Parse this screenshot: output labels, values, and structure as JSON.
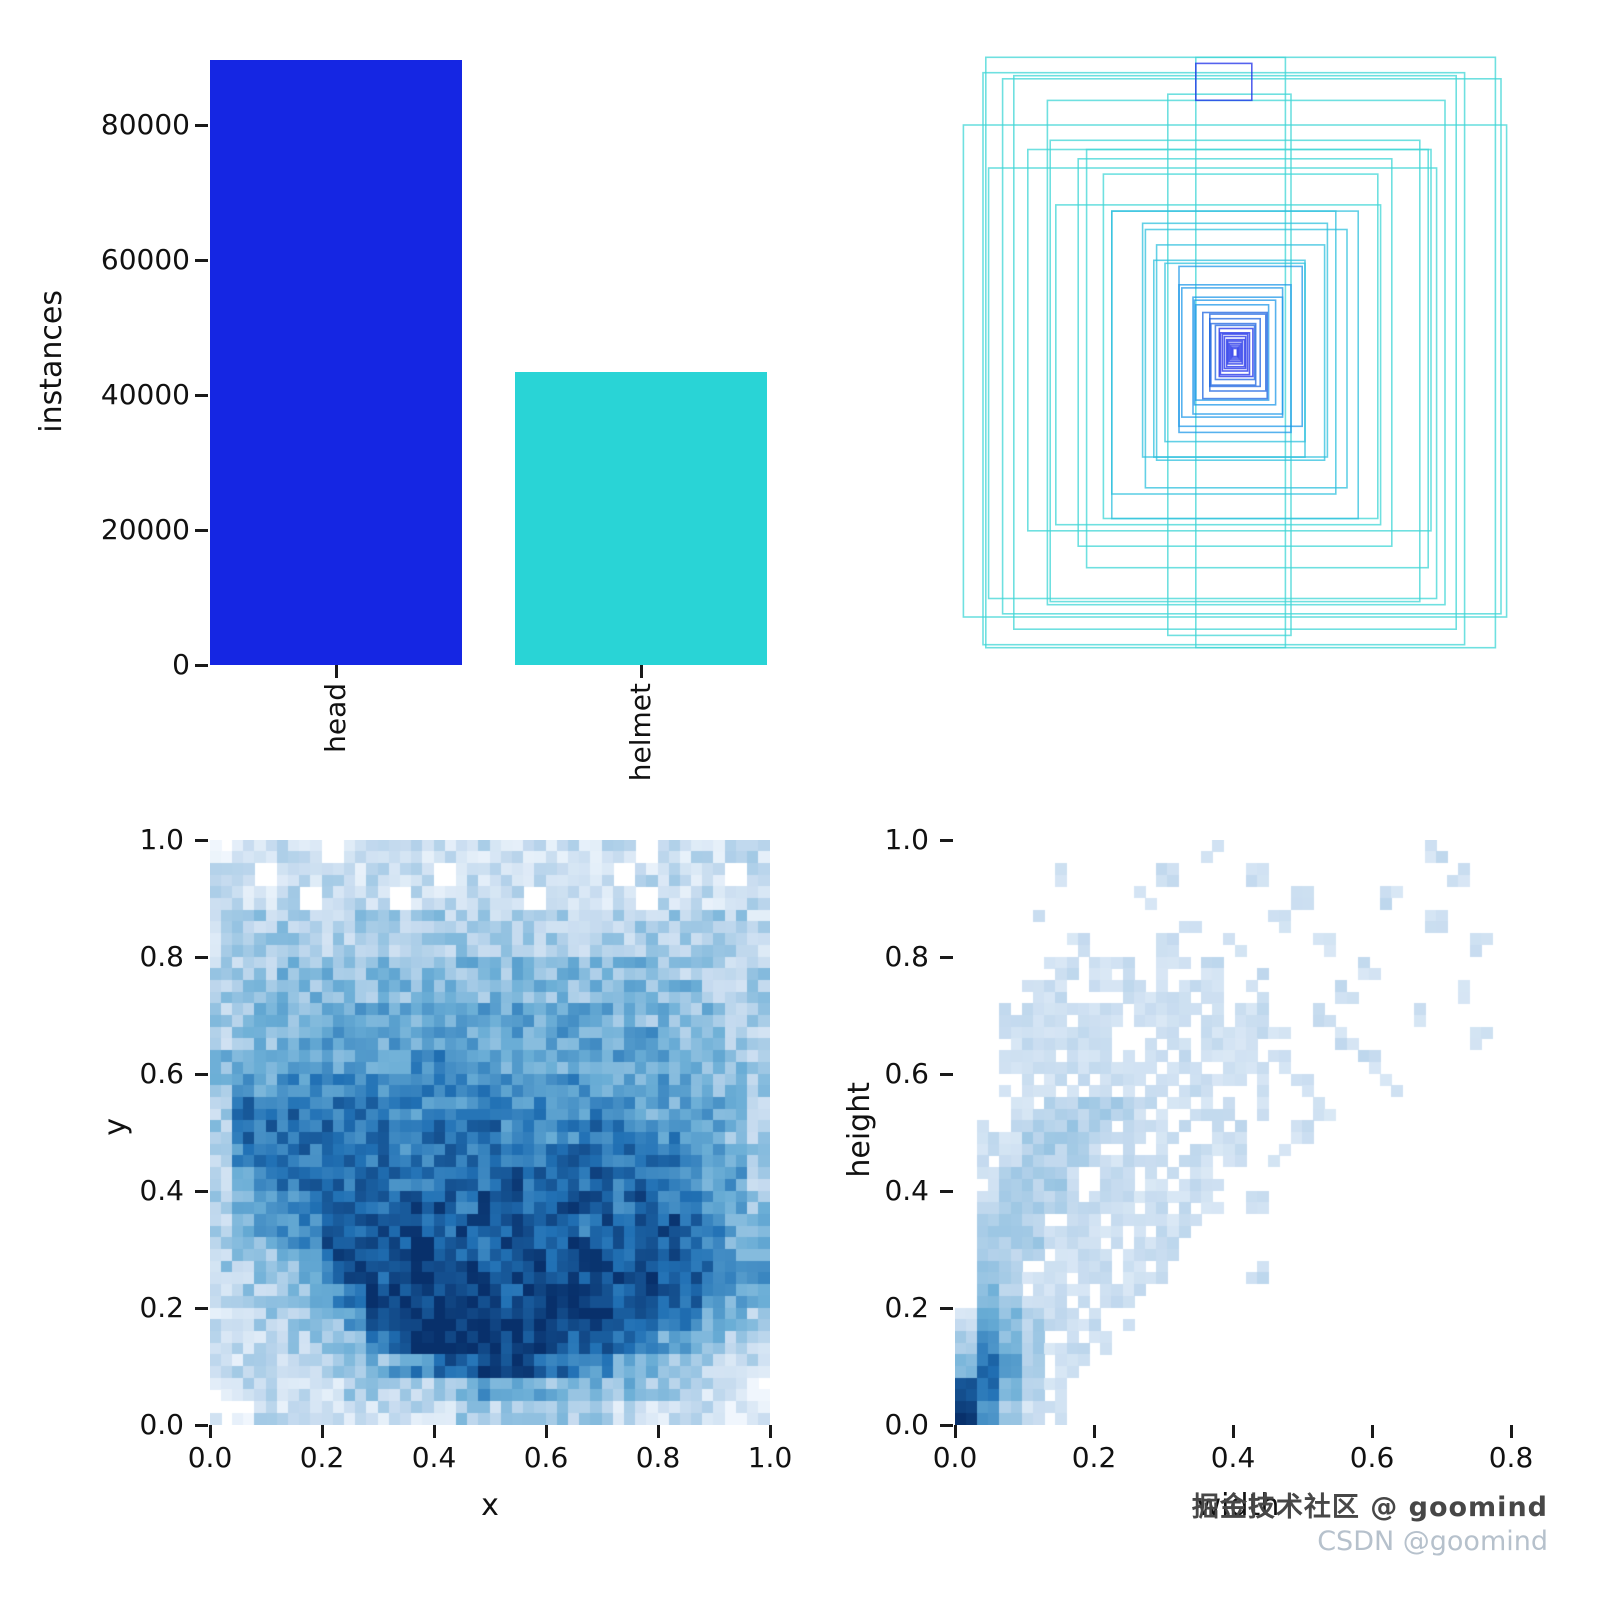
{
  "watermark": {
    "line1": "掘金技术社区 @ goomind",
    "line2": "CSDN @goomind"
  },
  "chart_data": [
    {
      "type": "bar",
      "title": "",
      "categories": [
        "head",
        "helmet"
      ],
      "values": [
        89600,
        43400
      ],
      "colors": [
        "#1526e3",
        "#29d4d6"
      ],
      "xlabel": "",
      "ylabel": "instances",
      "yticks": [
        0,
        20000,
        40000,
        60000,
        80000
      ],
      "ylim": [
        0,
        90000
      ],
      "legend": "none",
      "grid": false
    },
    {
      "type": "boxes-overlay",
      "description": "all bounding boxes drawn centered and overlaid, outline only",
      "palette": [
        "#3fd6d6",
        "#2fc0de",
        "#1f98e8",
        "#1e64e0",
        "#1c2ee8"
      ],
      "boxes": [
        [
          0.97,
          0.8,
          0,
          0.0,
          0.03
        ],
        [
          0.91,
          0.96,
          0,
          0.01,
          0.0
        ],
        [
          0.86,
          0.93,
          0,
          -0.02,
          0.01
        ],
        [
          0.89,
          0.87,
          0,
          0.03,
          -0.01
        ],
        [
          0.79,
          0.9,
          0,
          0.0,
          0.0
        ],
        [
          0.8,
          0.7,
          0,
          -0.04,
          0.05
        ],
        [
          0.71,
          0.82,
          0,
          0.02,
          0.0
        ],
        [
          0.66,
          0.75,
          0,
          0.0,
          0.03
        ],
        [
          0.72,
          0.62,
          0,
          -0.01,
          -0.02
        ],
        [
          0.16,
          0.96,
          0,
          0.01,
          0.0
        ],
        [
          0.22,
          0.88,
          0,
          -0.01,
          0.02
        ],
        [
          0.61,
          0.68,
          0,
          0.04,
          0.01
        ],
        [
          0.56,
          0.63,
          0,
          0.0,
          0.0
        ],
        [
          0.58,
          0.52,
          0,
          -0.03,
          0.02
        ],
        [
          0.49,
          0.56,
          0,
          0.01,
          -0.01
        ],
        [
          0.44,
          0.5,
          1,
          0.0,
          0.02
        ],
        [
          0.4,
          0.46,
          1,
          -0.02,
          0.0
        ],
        [
          0.36,
          0.42,
          1,
          0.02,
          0.01
        ],
        [
          0.33,
          0.38,
          1,
          0.0,
          -0.02
        ],
        [
          0.3,
          0.35,
          1,
          0.01,
          0.0
        ],
        [
          0.27,
          0.32,
          1,
          -0.01,
          0.01
        ],
        [
          0.25,
          0.29,
          1,
          0.0,
          0.0
        ],
        [
          0.22,
          0.26,
          2,
          0.01,
          -0.01
        ],
        [
          0.2,
          0.24,
          2,
          0.0,
          0.01
        ],
        [
          0.18,
          0.21,
          2,
          -0.005,
          0.0
        ],
        [
          0.16,
          0.19,
          2,
          0.005,
          0.005
        ],
        [
          0.145,
          0.17,
          2,
          0.0,
          0.0
        ],
        [
          0.13,
          0.155,
          2,
          -0.005,
          0.0
        ],
        [
          0.115,
          0.14,
          3,
          0.0,
          0.005
        ],
        [
          0.1,
          0.125,
          3,
          0.005,
          0.0
        ],
        [
          0.09,
          0.11,
          3,
          0.0,
          0.0
        ],
        [
          0.08,
          0.1,
          3,
          -0.003,
          0.003
        ],
        [
          0.07,
          0.088,
          3,
          0.0,
          0.0
        ],
        [
          0.1,
          0.06,
          4,
          -0.02,
          -0.44
        ],
        [
          0.06,
          0.078,
          4,
          0.002,
          0.0
        ],
        [
          0.052,
          0.068,
          4,
          0.0,
          0.002
        ],
        [
          0.045,
          0.06,
          4,
          0.0,
          0.0
        ],
        [
          0.038,
          0.052,
          4,
          0.0,
          0.0
        ],
        [
          0.032,
          0.044,
          4,
          0.001,
          0.001
        ],
        [
          0.026,
          0.037,
          4,
          0.0,
          0.0
        ],
        [
          0.021,
          0.03,
          4,
          0.0,
          0.0
        ],
        [
          0.016,
          0.024,
          4,
          0.0,
          0.0
        ],
        [
          0.012,
          0.018,
          4,
          0.0,
          0.0
        ],
        [
          0.008,
          0.013,
          4,
          0.0,
          0.0
        ]
      ]
    },
    {
      "type": "heatmap",
      "xlabel": "x",
      "ylabel": "y",
      "xticks": [
        "0.0",
        "0.2",
        "0.4",
        "0.6",
        "0.8",
        "1.0"
      ],
      "yticks": [
        "0.0",
        "0.2",
        "0.4",
        "0.6",
        "0.8",
        "1.0"
      ],
      "xlim": [
        0,
        1
      ],
      "ylim": [
        0,
        1
      ],
      "colormap": "Blues",
      "render": {
        "noise": 1.3,
        "dropV": 1,
        "dropP": 0.25
      },
      "grid_rows_top_to_bottom": [
        "1222202222222222222022222",
        "2202222222022222220222202",
        "2222022202222202222022222",
        "2333333333333333333333332",
        "2333333333333333333333332",
        "3334444444444444444443333",
        "3344444444444444444444333",
        "3444455555555555554444433",
        "3444555555555555555544433",
        "4455555556666555555554443",
        "4556666666666666655555443",
        "3777777766666666666555543",
        "3777777767777666677665543",
        "3677777767777777777776543",
        "3567777777787877787776553",
        "3456777788878878887877554",
        "3456678888788888788887654",
        "3445688889887888988887655",
        "3344578899898898888988765",
        "2334467999999899998887654",
        "2233345899999999998876543",
        "2223334689999999887655432",
        "2222333456889987665443322",
        "1222223333445554444333221",
        "1122222222233333332222211"
      ]
    },
    {
      "type": "heatmap",
      "xlabel": "width",
      "ylabel": "height",
      "xticks": [
        "0.0",
        "0.2",
        "0.4",
        "0.6",
        "0.8"
      ],
      "yticks": [
        "0.0",
        "0.2",
        "0.4",
        "0.6",
        "0.8",
        "1.0"
      ],
      "xlim": [
        0,
        0.8
      ],
      "ylim": [
        0,
        1
      ],
      "colormap": "Blues",
      "render": {
        "noise": 0.6,
        "dropV": 2,
        "dropP": 0.3
      },
      "grid_rows_top_to_bottom": [
        "0000000000020000000002000",
        "0000200002000200000000200",
        "0000000020000002000200000",
        "0002000000200020000002000",
        "0000020002002000200000020",
        "0000222202220200002000000",
        "0002202222220200020000200",
        "0022222222222200200020000",
        "0022222022222220020000020",
        "0022222222222220002000000",
        "0022222222222202000200000",
        "0022333322222200200000000",
        "0223333222222002000000000",
        "0223332222222020000000000",
        "0233322222220000000000000",
        "0233322222220200000000000",
        "0333222222200000000000000",
        "0333222222000000000000000",
        "0432222222000200000000000",
        "2432222220000000000000000",
        "2543222200000000000000000",
        "3643222000000000000000000",
        "4753220000000000000000000",
        "8743200000000000000000000",
        "9632200000000000000000000"
      ]
    }
  ]
}
